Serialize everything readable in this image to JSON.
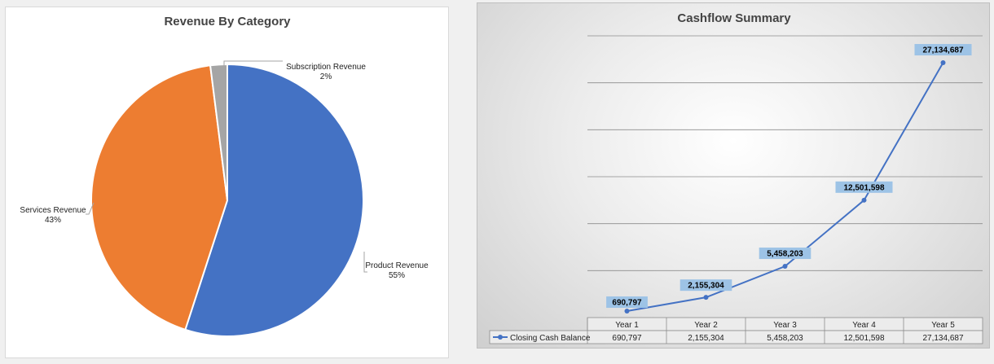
{
  "pie_chart": {
    "type": "pie",
    "title": "Revenue By Category",
    "slices": [
      {
        "name": "Product Revenue",
        "value": 55,
        "percent_label": "55%",
        "color": "#4472c4"
      },
      {
        "name": "Services Revenue",
        "value": 43,
        "percent_label": "43%",
        "color": "#ed7d31"
      },
      {
        "name": "Subscription Revenue",
        "value": 2,
        "percent_label": "2%",
        "color": "#a5a5a5"
      }
    ]
  },
  "chart_data": [
    {
      "type": "pie",
      "title": "Revenue By Category",
      "categories": [
        "Product Revenue",
        "Services Revenue",
        "Subscription Revenue"
      ],
      "values": [
        55,
        43,
        2
      ]
    },
    {
      "type": "line",
      "title": "Cashflow Summary",
      "categories": [
        "Year 1",
        "Year 2",
        "Year 3",
        "Year 4",
        "Year 5"
      ],
      "series": [
        {
          "name": "Closing Cash Balance",
          "values": [
            690797,
            2155304,
            5458203,
            12501598,
            27134687
          ],
          "color": "#4472c4"
        }
      ],
      "ylim": [
        0,
        30000000
      ],
      "grid": true,
      "data_table": true
    }
  ],
  "line_chart": {
    "title": "Cashflow Summary",
    "series_name": "Closing Cash Balance",
    "categories": [
      "Year 1",
      "Year 2",
      "Year 3",
      "Year 4",
      "Year 5"
    ],
    "values": [
      690797,
      2155304,
      5458203,
      12501598,
      27134687
    ],
    "value_labels": [
      "690,797",
      "2,155,304",
      "5,458,203",
      "12,501,598",
      "27,134,687"
    ],
    "ymax": 30000000,
    "gridline_step": 5000000,
    "line_color": "#4472c4",
    "label_bg": "#9dc3e6"
  }
}
